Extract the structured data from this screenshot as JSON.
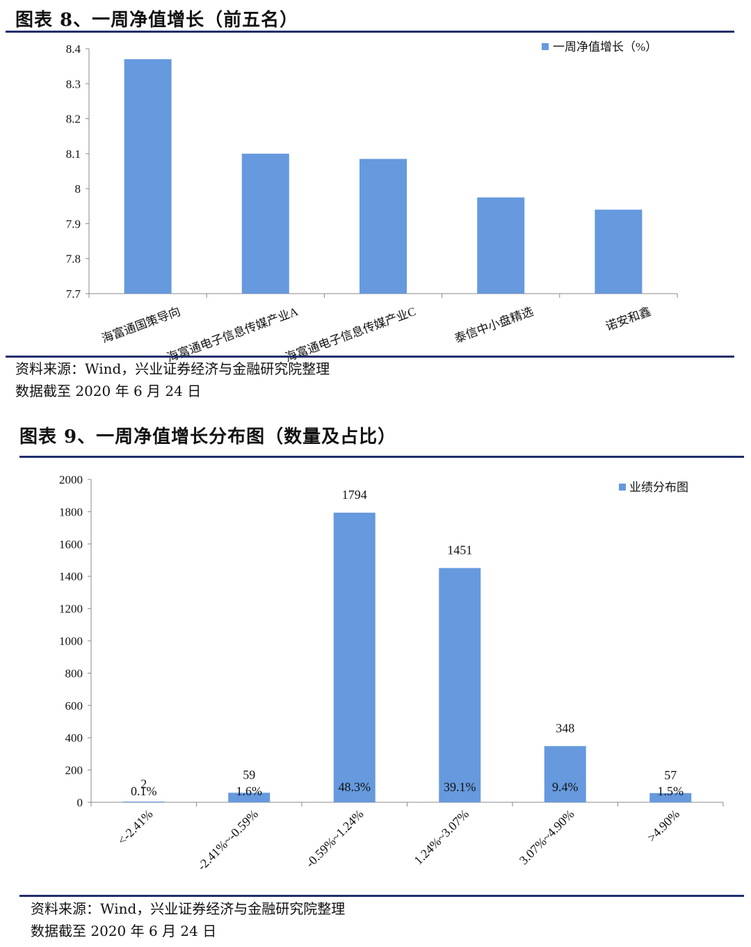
{
  "fig1": {
    "title": "图表 8、一周净值增长（前五名）",
    "source": "资料来源：Wind，兴业证券经济与金融研究院整理",
    "date": "数据截至 2020 年 6 月 24 日",
    "colors": {
      "bar": "#6699dd",
      "rule": "#1f2d6b"
    },
    "chart_data": {
      "type": "bar",
      "categories": [
        "海富通国策导向",
        "海富通电子信息传媒产业A",
        "海富通电子信息传媒产业C",
        "泰信中小盘精选",
        "诺安和鑫"
      ],
      "series": [
        {
          "name": "一周净值增长（%）",
          "values": [
            8.37,
            8.1,
            8.085,
            7.975,
            7.94
          ]
        }
      ],
      "ylim": [
        7.7,
        8.4
      ],
      "yticks": [
        "8.4",
        "8.3",
        "8.2",
        "8.1",
        "8",
        "7.9",
        "7.8",
        "7.7"
      ],
      "legend": "top-right",
      "grid": false
    }
  },
  "fig2": {
    "title": "图表 9、一周净值增长分布图（数量及占比）",
    "source": "资料来源：Wind，兴业证券经济与金融研究院整理",
    "date": "数据截至 2020 年 6 月 24 日",
    "colors": {
      "bar": "#6699dd",
      "rule": "#1f2d6b"
    },
    "chart_data": {
      "type": "bar",
      "categories": [
        "<-2.41%",
        "-2.41%~-0.59%",
        "-0.59%~1.24%",
        "1.24%~3.07%",
        "3.07%~4.90%",
        ">4.90%"
      ],
      "series": [
        {
          "name": "业绩分布图",
          "values": [
            2,
            59,
            1794,
            1451,
            348,
            57
          ]
        }
      ],
      "percent_labels": [
        "0.1%",
        "1.6%",
        "48.3%",
        "39.1%",
        "9.4%",
        "1.5%"
      ],
      "ylim": [
        0,
        2000
      ],
      "yticks": [
        "2000",
        "1800",
        "1600",
        "1400",
        "1200",
        "1000",
        "800",
        "600",
        "400",
        "200",
        "0"
      ],
      "legend": "top-right",
      "grid": false
    }
  }
}
